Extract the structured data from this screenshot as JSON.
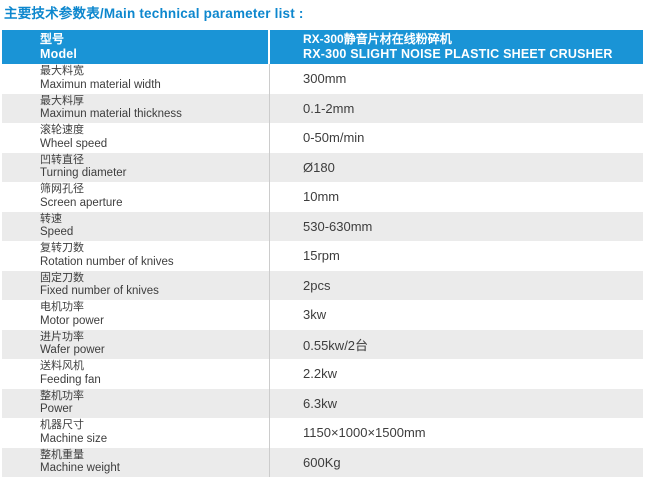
{
  "page": {
    "title": "主要技术参数表/Main technical parameter list :"
  },
  "colors": {
    "title_text": "#0d87ce",
    "header_bg": "#1a94d6",
    "header_text": "#ffffff",
    "row_alt_bg": "#ebebeb",
    "row_divider": "#cccccc",
    "body_text": "#3d3d3d"
  },
  "table": {
    "header": {
      "label_cn": "型号",
      "label_en": "Model",
      "value_cn": "RX-300静音片材在线粉碎机",
      "value_en": "RX-300 SLIGHT NOISE PLASTIC SHEET CRUSHER"
    },
    "rows": [
      {
        "label_cn": "最大料宽",
        "label_en": "Maximun material width",
        "value": "300mm"
      },
      {
        "label_cn": "最大料厚",
        "label_en": "Maximun material thickness",
        "value": "0.1-2mm"
      },
      {
        "label_cn": "滚轮速度",
        "label_en": "Wheel speed",
        "value": "0-50m/min"
      },
      {
        "label_cn": "凹转直径",
        "label_en": "Turning diameter",
        "value": "Ø180"
      },
      {
        "label_cn": "筛网孔径",
        "label_en": "Screen aperture",
        "value": "10mm"
      },
      {
        "label_cn": "转速",
        "label_en": "Speed",
        "value": "530-630mm"
      },
      {
        "label_cn": "复转刀数",
        "label_en": "Rotation number of knives",
        "value": "15rpm"
      },
      {
        "label_cn": "固定刀数",
        "label_en": "Fixed number of knives",
        "value": "2pcs"
      },
      {
        "label_cn": "电机功率",
        "label_en": "Motor power",
        "value": "3kw"
      },
      {
        "label_cn": "进片功率",
        "label_en": "Wafer power",
        "value": "0.55kw/2台"
      },
      {
        "label_cn": "送料风机",
        "label_en": "Feeding fan",
        "value": "2.2kw"
      },
      {
        "label_cn": "整机功率",
        "label_en": "Power",
        "value": "6.3kw"
      },
      {
        "label_cn": "机器尺寸",
        "label_en": "Machine size",
        "value": "1150×1000×1500mm"
      },
      {
        "label_cn": "整机重量",
        "label_en": "Machine weight",
        "value": "600Kg"
      }
    ]
  }
}
